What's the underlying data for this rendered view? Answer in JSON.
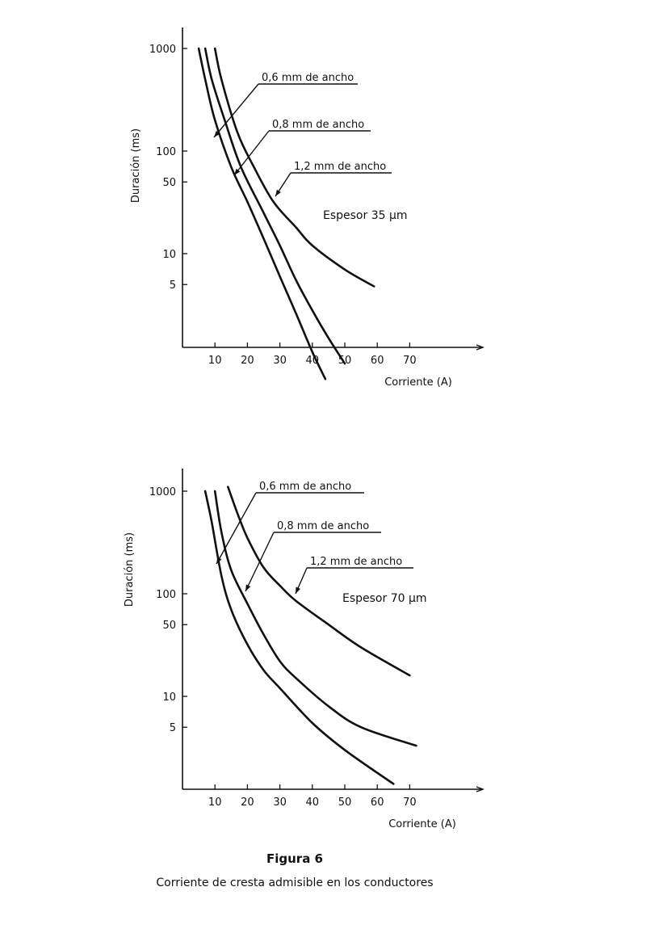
{
  "figure": {
    "label": "Figura 6",
    "caption": "Corriente de cresta admisible en los conductores"
  },
  "chart_data": [
    {
      "type": "line",
      "title": "",
      "annotation": "Espesor 35 µm",
      "xlabel": "Corriente (A)",
      "ylabel": "Duración (ms)",
      "x_ticks": [
        "10",
        "20",
        "30",
        "40",
        "50",
        "60",
        "70"
      ],
      "y_ticks": [
        "1000",
        "100",
        "50",
        "10",
        "5"
      ],
      "y_scale": "log",
      "xlim": [
        0,
        84
      ],
      "ylim": [
        0.55,
        1700
      ],
      "grid": false,
      "series": [
        {
          "name": "0,6 mm de ancho",
          "x": [
            5,
            7,
            10,
            15,
            20,
            25,
            30,
            35,
            40,
            44
          ],
          "y": [
            1000,
            500,
            200,
            70,
            32,
            14,
            6,
            2.6,
            1.1,
            0.6
          ]
        },
        {
          "name": "0,8 mm de ancho",
          "x": [
            7,
            9,
            13,
            18,
            25,
            30,
            35,
            40,
            45,
            50
          ],
          "y": [
            1000,
            500,
            200,
            70,
            25,
            12,
            5.5,
            2.8,
            1.5,
            0.85
          ]
        },
        {
          "name": "1,2 mm de ancho",
          "x": [
            10,
            12,
            17,
            22,
            28,
            35,
            40,
            50,
            59
          ],
          "y": [
            1000,
            500,
            150,
            70,
            32,
            18,
            12,
            7,
            4.8
          ]
        }
      ]
    },
    {
      "type": "line",
      "title": "",
      "annotation": "Espesor 70 µm",
      "xlabel": "Corriente (A)",
      "ylabel": "Duración (ms)",
      "x_ticks": [
        "10",
        "20",
        "30",
        "40",
        "50",
        "60",
        "70"
      ],
      "y_ticks": [
        "1000",
        "100",
        "50",
        "10",
        "5"
      ],
      "y_scale": "log",
      "xlim": [
        0,
        84
      ],
      "ylim": [
        0.55,
        1700
      ],
      "grid": false,
      "series": [
        {
          "name": "0,6 mm de ancho",
          "x": [
            7,
            9,
            12,
            15,
            20,
            25,
            30,
            40,
            50,
            65
          ],
          "y": [
            1000,
            500,
            150,
            70,
            32,
            18,
            12,
            5.5,
            3,
            1.4
          ]
        },
        {
          "name": "0,8 mm de ancho",
          "x": [
            10,
            12,
            15,
            20,
            25,
            30,
            35,
            45,
            55,
            72
          ],
          "y": [
            1000,
            400,
            170,
            80,
            40,
            22,
            15,
            8,
            5,
            3.3
          ]
        },
        {
          "name": "1,2 mm de ancho",
          "x": [
            14,
            17,
            20,
            25,
            30,
            35,
            45,
            55,
            70
          ],
          "y": [
            1100,
            600,
            350,
            180,
            120,
            85,
            50,
            30,
            16
          ]
        }
      ]
    }
  ]
}
